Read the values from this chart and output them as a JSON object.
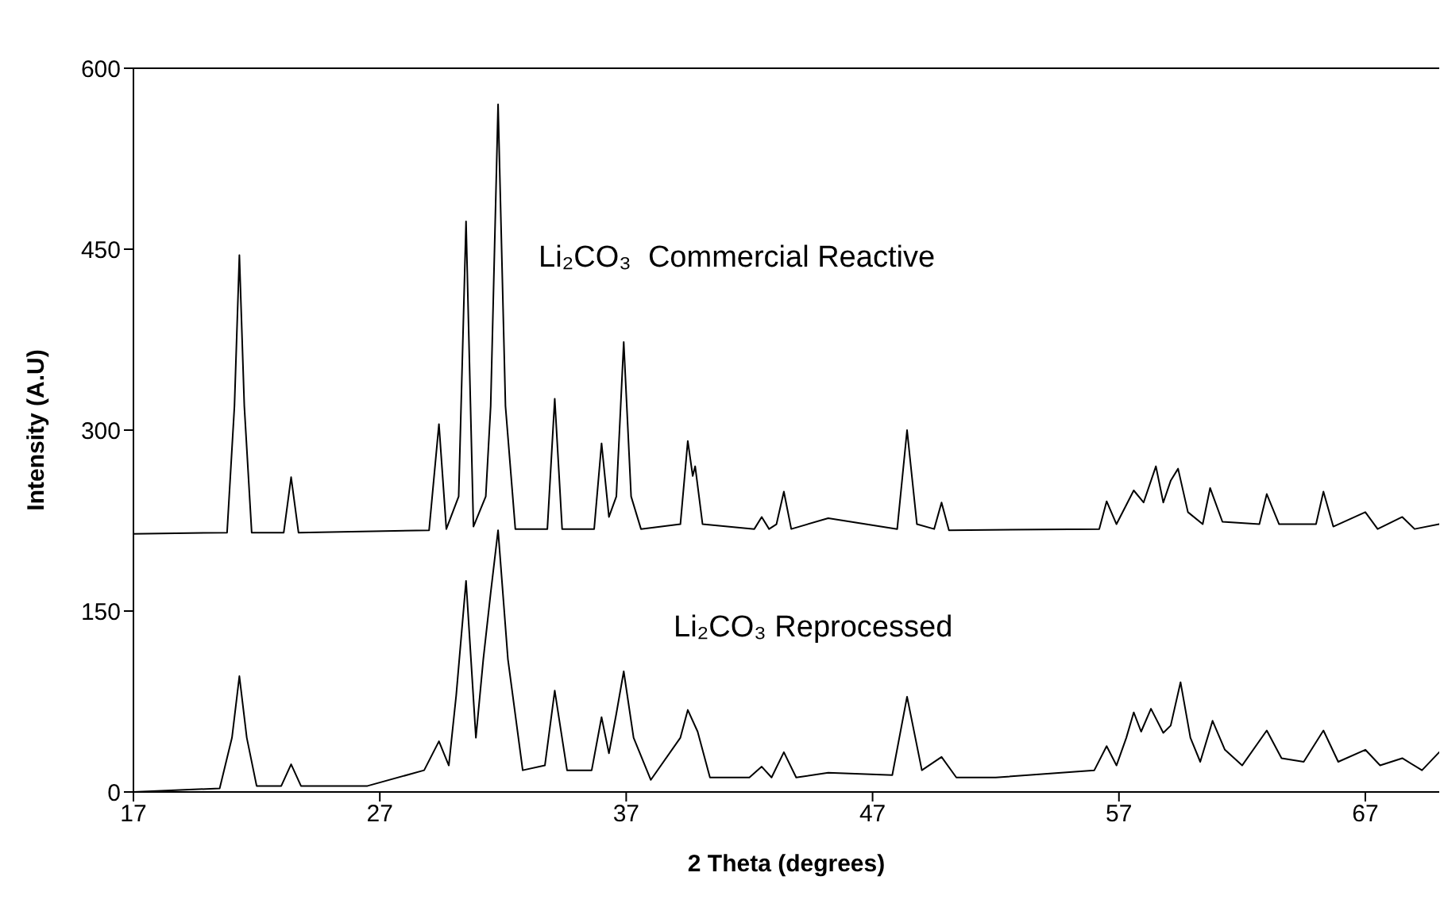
{
  "chart_data": {
    "type": "line",
    "xlabel": "2 Theta  (degrees)",
    "ylabel": "Intensity (A.U)",
    "xlim": [
      17,
      70
    ],
    "xticks": [
      17,
      27,
      37,
      47,
      57,
      67
    ],
    "ylim": [
      0,
      600
    ],
    "yticks": [
      0,
      150,
      300,
      450,
      600
    ],
    "marker": "none",
    "line_style": "solid",
    "series": [
      {
        "name": "Li₂CO₃  Commercial Reactive",
        "color": "#000000",
        "x": [
          17,
          20.8,
          21.1,
          21.3,
          21.5,
          21.8,
          23.1,
          23.4,
          23.7,
          29.0,
          29.4,
          29.7,
          30.2,
          30.5,
          30.8,
          31.3,
          31.5,
          31.8,
          32.1,
          32.5,
          33.8,
          34.1,
          34.4,
          35.7,
          36.0,
          36.3,
          36.6,
          36.9,
          37.2,
          37.6,
          39.2,
          39.5,
          39.7,
          39.8,
          40.1,
          42.2,
          42.5,
          42.8,
          43.1,
          43.4,
          43.7,
          45.2,
          48.0,
          48.4,
          48.8,
          49.5,
          49.8,
          50.1,
          56.2,
          56.5,
          56.9,
          57.3,
          57.6,
          58.0,
          58.5,
          58.8,
          59.1,
          59.4,
          59.8,
          60.4,
          60.7,
          61.2,
          62.7,
          63.0,
          63.5,
          65.0,
          65.3,
          65.7,
          67.0,
          67.5,
          68.5,
          69,
          70
        ],
        "values": [
          214,
          215,
          320,
          445,
          320,
          215,
          215,
          261,
          215,
          217,
          305,
          218,
          245,
          473,
          220,
          245,
          320,
          570,
          320,
          218,
          218,
          326,
          218,
          218,
          289,
          228,
          245,
          373,
          245,
          218,
          222,
          291,
          262,
          270,
          222,
          218,
          228,
          218,
          222,
          249,
          218,
          227,
          218,
          300,
          222,
          218,
          240,
          217,
          218,
          241,
          222,
          238,
          250,
          240,
          270,
          240,
          258,
          268,
          232,
          222,
          252,
          224,
          222,
          247,
          222,
          222,
          249,
          220,
          232,
          218,
          228,
          218,
          222
        ]
      },
      {
        "name": "Li₂CO₃ Reprocessed",
        "color": "#000000",
        "x": [
          17,
          20.5,
          21.0,
          21.3,
          21.6,
          22.0,
          23.0,
          23.4,
          23.8,
          26.5,
          28.8,
          29.4,
          29.8,
          30.1,
          30.5,
          30.9,
          31.2,
          31.5,
          31.8,
          32.2,
          32.8,
          33.7,
          34.1,
          34.6,
          35.6,
          36.0,
          36.3,
          36.6,
          36.9,
          37.3,
          38.0,
          39.2,
          39.5,
          39.9,
          40.4,
          42.0,
          42.5,
          42.9,
          43.4,
          43.9,
          45.2,
          47.8,
          48.4,
          49.0,
          49.8,
          50.4,
          52,
          56.0,
          56.5,
          56.9,
          57.3,
          57.6,
          57.9,
          58.3,
          58.8,
          59.1,
          59.5,
          59.9,
          60.3,
          60.8,
          61.3,
          62.0,
          63.0,
          63.6,
          64.5,
          65.3,
          65.9,
          67.0,
          67.6,
          68.5,
          69.3,
          70
        ],
        "values": [
          0,
          3,
          45,
          96,
          45,
          5,
          5,
          23,
          5,
          5,
          18,
          42,
          22,
          80,
          175,
          45,
          110,
          165,
          217,
          110,
          18,
          22,
          84,
          18,
          18,
          62,
          32,
          65,
          100,
          45,
          10,
          45,
          68,
          50,
          12,
          12,
          21,
          12,
          33,
          12,
          16,
          14,
          79,
          18,
          29,
          12,
          12,
          18,
          38,
          22,
          45,
          66,
          50,
          69,
          49,
          55,
          91,
          45,
          25,
          59,
          35,
          22,
          51,
          28,
          25,
          51,
          25,
          35,
          22,
          28,
          18,
          33
        ]
      }
    ]
  }
}
